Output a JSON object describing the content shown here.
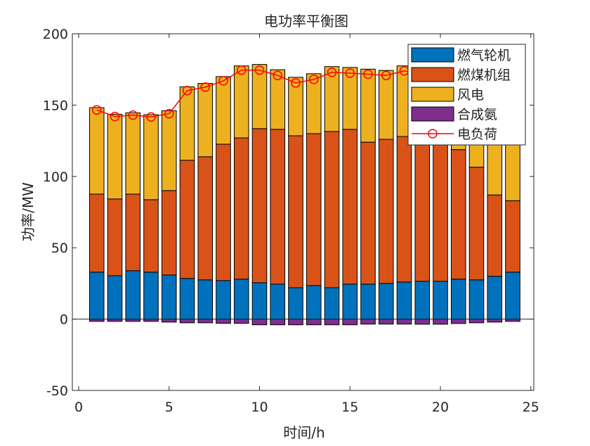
{
  "chart_data": {
    "type": "bar",
    "stacked": true,
    "title": "电功率平衡图",
    "xlabel": "时间/h",
    "ylabel": "功率/MW",
    "xlim": [
      0,
      25
    ],
    "ylim": [
      -50,
      200
    ],
    "xticks": [
      0,
      5,
      10,
      15,
      20,
      25
    ],
    "yticks": [
      -50,
      0,
      50,
      100,
      150,
      200
    ],
    "grid": false,
    "legend_position": "top-right",
    "x": [
      1,
      2,
      3,
      4,
      5,
      6,
      7,
      8,
      9,
      10,
      11,
      12,
      13,
      14,
      15,
      16,
      17,
      18,
      19,
      20,
      21,
      22,
      23,
      24
    ],
    "series": [
      {
        "name": "燃气轮机",
        "kind": "bar",
        "color": "#0072BD",
        "values": [
          32.9,
          30.4,
          33.9,
          32.9,
          30.9,
          28.5,
          27.5,
          27.0,
          28.0,
          25.5,
          24.5,
          22.0,
          23.5,
          22.0,
          24.5,
          24.5,
          25.0,
          26.0,
          26.5,
          26.5,
          28.0,
          27.5,
          30.0,
          32.9
        ]
      },
      {
        "name": "燃煤机组",
        "kind": "bar",
        "color": "#D95319",
        "values": [
          54.7,
          53.8,
          53.7,
          50.8,
          59.2,
          82.8,
          86.3,
          95.6,
          99.0,
          108.0,
          108.5,
          106.5,
          106.5,
          109.5,
          108.5,
          99.5,
          101.0,
          102.0,
          99.5,
          97.5,
          90.8,
          79.0,
          57.0,
          50.1
        ]
      },
      {
        "name": "风电",
        "kind": "bar",
        "color": "#EDB120",
        "values": [
          60.6,
          59.4,
          57.0,
          59.6,
          56.0,
          51.5,
          51.4,
          47.4,
          50.5,
          45.0,
          41.8,
          41.0,
          42.0,
          45.5,
          43.4,
          51.2,
          48.3,
          49.5,
          49.6,
          49.6,
          49.3,
          53.1,
          65.1,
          64.6
        ]
      },
      {
        "name": "合成氨",
        "kind": "bar",
        "color": "#7E2F8E",
        "values": [
          -1.6,
          -1.6,
          -1.6,
          -1.6,
          -2.1,
          -2.6,
          -2.6,
          -3.0,
          -3.0,
          -4.0,
          -4.0,
          -4.0,
          -4.0,
          -4.0,
          -4.0,
          -3.5,
          -3.5,
          -3.5,
          -3.6,
          -3.6,
          -3.1,
          -2.6,
          -2.1,
          -1.6
        ]
      },
      {
        "name": "电负荷",
        "kind": "line",
        "marker": "circle",
        "color": "#FF0000",
        "values": [
          146.6,
          142.0,
          143.0,
          141.7,
          144.0,
          160.2,
          162.6,
          167.0,
          174.5,
          174.5,
          170.8,
          165.5,
          168.0,
          173.0,
          172.4,
          171.7,
          170.8,
          174.0,
          172.0,
          170.0,
          165.0,
          157.0,
          150.0,
          146.0
        ]
      }
    ]
  }
}
